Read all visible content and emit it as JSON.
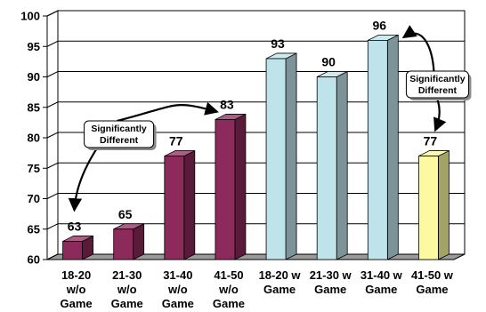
{
  "chart_data": {
    "type": "bar",
    "title": "",
    "xlabel": "",
    "ylabel": "",
    "ylim": [
      60,
      100
    ],
    "yticks": [
      60,
      65,
      70,
      75,
      80,
      85,
      90,
      95,
      100
    ],
    "grid": true,
    "categories": [
      [
        "18-20",
        "w/o",
        "Game"
      ],
      [
        "21-30",
        "w/o",
        "Game"
      ],
      [
        "31-40",
        "w/o",
        "Game"
      ],
      [
        "41-50",
        "w/o",
        "Game"
      ],
      [
        "18-20 w",
        "Game"
      ],
      [
        "21-30 w",
        "Game"
      ],
      [
        "31-40 w",
        "Game"
      ],
      [
        "41-50 w",
        "Game"
      ]
    ],
    "values": [
      63,
      65,
      77,
      83,
      93,
      90,
      96,
      77
    ],
    "bar_colors": [
      "#8b2a5b",
      "#8b2a5b",
      "#8b2a5b",
      "#8b2a5b",
      "#bfe3ea",
      "#bfe3ea",
      "#bfe3ea",
      "#fbfaa0"
    ],
    "annotations": [
      {
        "lines": [
          "Significantly",
          "Different"
        ],
        "connects": [
          0,
          3
        ]
      },
      {
        "lines": [
          "Significantly",
          "Different"
        ],
        "connects": [
          6,
          7
        ]
      }
    ]
  }
}
